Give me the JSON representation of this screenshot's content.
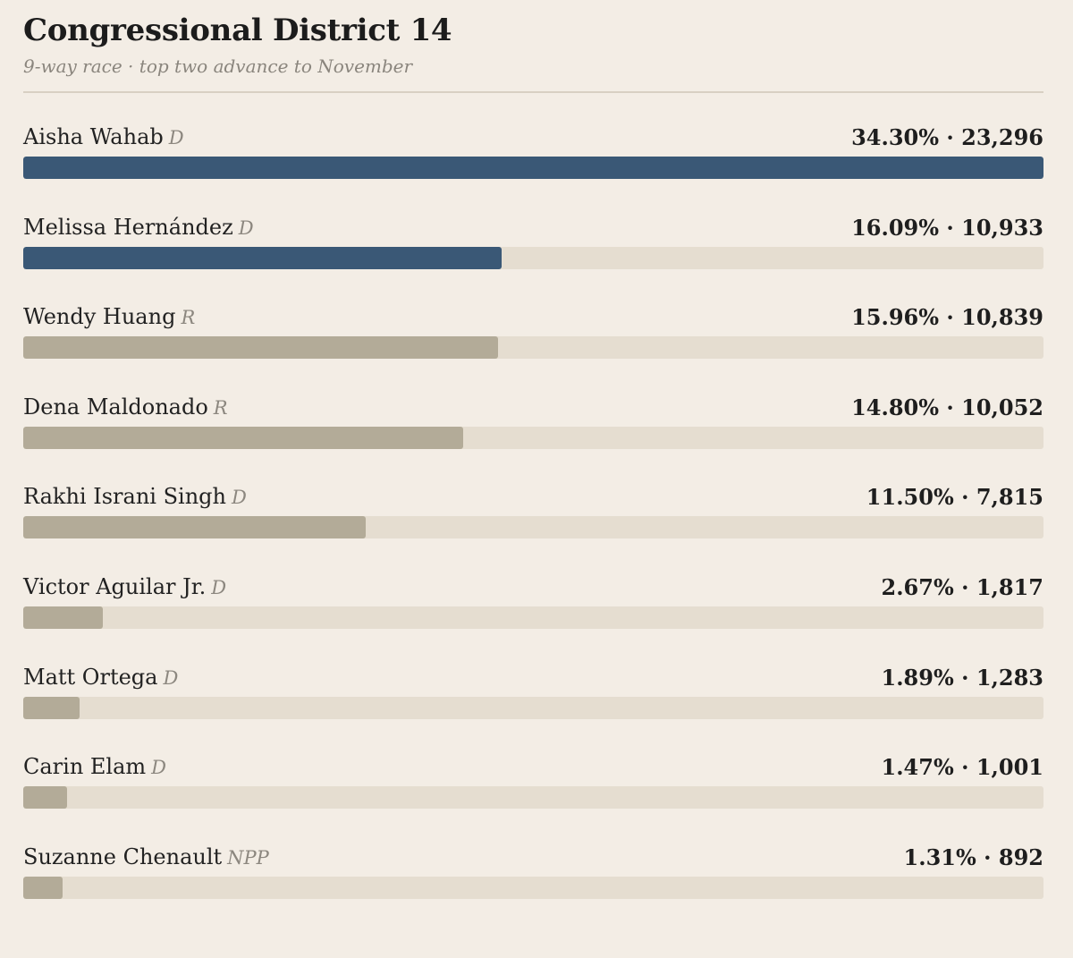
{
  "header": {
    "title": "Congressional District 14",
    "subtitle": "9-way race · top two advance to November"
  },
  "colors": {
    "advancing": "#3a5876",
    "other": "#b3ab98",
    "track": "#e5ddd0",
    "background": "#f3ede5"
  },
  "chart_data": {
    "type": "bar",
    "orientation": "horizontal",
    "title": "Congressional District 14",
    "subtitle": "9-way race · top two advance to November",
    "xlim": [
      0,
      34.3
    ],
    "categories": [
      "Aisha Wahab",
      "Melissa Hernández",
      "Wendy Huang",
      "Dena Maldonado",
      "Rakhi Israni Singh",
      "Victor Aguilar Jr.",
      "Matt Ortega",
      "Carin Elam",
      "Suzanne Chenault"
    ],
    "candidates": [
      {
        "name": "Aisha Wahab",
        "party": "D",
        "pct": 34.3,
        "pct_label": "34.30%",
        "votes": 23296,
        "votes_label": "23,296",
        "advances": true
      },
      {
        "name": "Melissa Hernández",
        "party": "D",
        "pct": 16.09,
        "pct_label": "16.09%",
        "votes": 10933,
        "votes_label": "10,933",
        "advances": true
      },
      {
        "name": "Wendy Huang",
        "party": "R",
        "pct": 15.96,
        "pct_label": "15.96%",
        "votes": 10839,
        "votes_label": "10,839",
        "advances": false
      },
      {
        "name": "Dena Maldonado",
        "party": "R",
        "pct": 14.8,
        "pct_label": "14.80%",
        "votes": 10052,
        "votes_label": "10,052",
        "advances": false
      },
      {
        "name": "Rakhi Israni Singh",
        "party": "D",
        "pct": 11.5,
        "pct_label": "11.50%",
        "votes": 7815,
        "votes_label": "7,815",
        "advances": false
      },
      {
        "name": "Victor Aguilar Jr.",
        "party": "D",
        "pct": 2.67,
        "pct_label": "2.67%",
        "votes": 1817,
        "votes_label": "1,817",
        "advances": false
      },
      {
        "name": "Matt Ortega",
        "party": "D",
        "pct": 1.89,
        "pct_label": "1.89%",
        "votes": 1283,
        "votes_label": "1,283",
        "advances": false
      },
      {
        "name": "Carin Elam",
        "party": "D",
        "pct": 1.47,
        "pct_label": "1.47%",
        "votes": 1001,
        "votes_label": "1,001",
        "advances": false
      },
      {
        "name": "Suzanne Chenault",
        "party": "NPP",
        "pct": 1.31,
        "pct_label": "1.31%",
        "votes": 892,
        "votes_label": "892",
        "advances": false
      }
    ]
  }
}
